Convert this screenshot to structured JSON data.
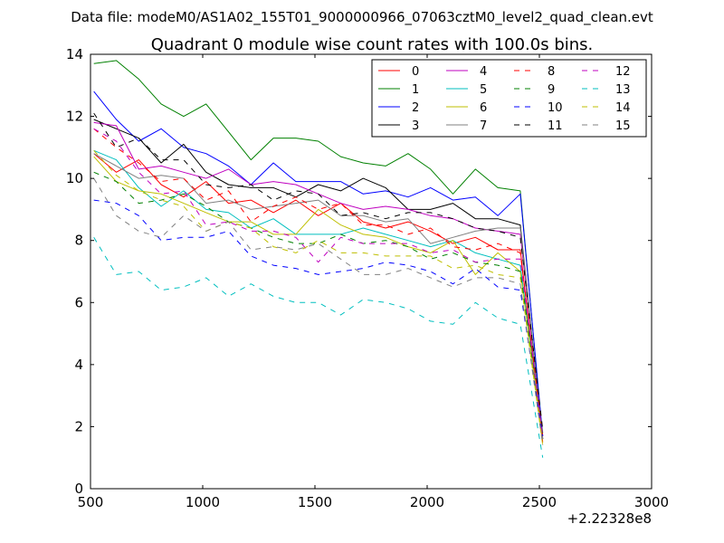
{
  "figure": {
    "suptitle": "Data file: modeM0/AS1A02_155T01_9000000966_07063cztM0_level2_quad_clean.evt",
    "offset_label": "+2.22328e8"
  },
  "chart_data": {
    "type": "line",
    "title": "Quadrant 0 module wise count rates with 100.0s bins.",
    "xlabel": "",
    "ylabel": "",
    "xlim": [
      500,
      3000
    ],
    "ylim": [
      0,
      14
    ],
    "xticks": [
      500,
      1000,
      1500,
      2000,
      2500,
      3000
    ],
    "yticks": [
      0,
      2,
      4,
      6,
      8,
      10,
      12,
      14
    ],
    "legend_position": "top-right",
    "legend_columns": 4,
    "x": [
      515,
      615,
      715,
      815,
      915,
      1015,
      1115,
      1215,
      1315,
      1415,
      1515,
      1615,
      1715,
      1815,
      1915,
      2015,
      2115,
      2215,
      2315,
      2415,
      2515
    ],
    "series": [
      {
        "name": "0",
        "color": "#ff0000",
        "dash": "solid",
        "values": [
          10.8,
          10.2,
          10.6,
          9.8,
          9.4,
          9.9,
          9.2,
          9.3,
          8.9,
          9.3,
          8.8,
          9.2,
          8.6,
          8.4,
          8.6,
          8.3,
          7.9,
          8.1,
          7.7,
          7.7,
          1.5
        ]
      },
      {
        "name": "1",
        "color": "#008000",
        "dash": "solid",
        "values": [
          13.7,
          13.8,
          13.2,
          12.4,
          12.0,
          12.4,
          11.5,
          10.6,
          11.3,
          11.3,
          11.2,
          10.7,
          10.5,
          10.4,
          10.8,
          10.3,
          9.5,
          10.3,
          9.7,
          9.6,
          1.6
        ]
      },
      {
        "name": "2",
        "color": "#0000ff",
        "dash": "solid",
        "values": [
          12.8,
          11.9,
          11.2,
          11.6,
          11.0,
          10.8,
          10.4,
          9.8,
          10.5,
          9.9,
          9.9,
          9.9,
          9.5,
          9.6,
          9.4,
          9.7,
          9.3,
          9.4,
          8.8,
          9.5,
          1.7
        ]
      },
      {
        "name": "3",
        "color": "#000000",
        "dash": "solid",
        "values": [
          11.9,
          11.6,
          11.3,
          10.5,
          11.1,
          10.2,
          9.8,
          9.7,
          9.7,
          9.4,
          9.8,
          9.6,
          10.0,
          9.7,
          9.0,
          9.0,
          9.2,
          8.7,
          8.7,
          8.5,
          1.6
        ]
      },
      {
        "name": "4",
        "color": "#bf00bf",
        "dash": "solid",
        "values": [
          11.8,
          11.7,
          10.3,
          10.4,
          10.2,
          10.0,
          10.3,
          9.8,
          9.9,
          9.8,
          9.5,
          9.2,
          9.0,
          9.1,
          9.0,
          8.8,
          8.7,
          8.4,
          8.3,
          8.2,
          1.6
        ]
      },
      {
        "name": "5",
        "color": "#00bfbf",
        "dash": "solid",
        "values": [
          10.9,
          10.6,
          9.7,
          9.1,
          9.6,
          9.0,
          8.9,
          8.4,
          8.7,
          8.2,
          8.2,
          8.2,
          8.4,
          8.2,
          8.0,
          7.8,
          8.0,
          7.6,
          7.4,
          7.2,
          1.7
        ]
      },
      {
        "name": "6",
        "color": "#bfbf00",
        "dash": "solid",
        "values": [
          10.7,
          9.9,
          9.6,
          9.5,
          9.2,
          8.9,
          8.6,
          8.6,
          8.2,
          8.2,
          9.0,
          8.5,
          8.2,
          8.1,
          7.8,
          7.6,
          8.0,
          6.9,
          7.6,
          7.0,
          1.6
        ]
      },
      {
        "name": "7",
        "color": "#808080",
        "dash": "solid",
        "values": [
          10.8,
          10.4,
          10.0,
          10.1,
          10.0,
          9.2,
          9.3,
          9.0,
          9.1,
          9.2,
          9.3,
          8.8,
          8.8,
          8.6,
          8.7,
          7.9,
          8.1,
          8.3,
          8.4,
          8.4,
          1.6
        ]
      },
      {
        "name": "8",
        "color": "#ff0000",
        "dash": "dashed",
        "values": [
          11.6,
          11.0,
          10.5,
          9.9,
          10.0,
          9.3,
          9.6,
          8.6,
          9.1,
          9.4,
          9.0,
          9.2,
          8.5,
          8.5,
          8.2,
          8.4,
          7.8,
          7.7,
          7.9,
          7.6,
          1.7
        ]
      },
      {
        "name": "9",
        "color": "#008000",
        "dash": "dashed",
        "values": [
          10.2,
          9.9,
          9.2,
          9.3,
          9.5,
          9.1,
          8.6,
          8.4,
          8.1,
          7.9,
          7.9,
          8.2,
          7.9,
          8.0,
          7.8,
          7.4,
          7.6,
          7.3,
          7.2,
          7.0,
          1.8
        ]
      },
      {
        "name": "10",
        "color": "#0000ff",
        "dash": "dashed",
        "values": [
          9.3,
          9.2,
          8.8,
          8.0,
          8.1,
          8.1,
          8.3,
          7.5,
          7.2,
          7.1,
          6.9,
          7.0,
          7.1,
          7.3,
          7.2,
          7.0,
          6.6,
          7.1,
          6.5,
          6.4,
          1.7
        ]
      },
      {
        "name": "11",
        "color": "#000000",
        "dash": "dashed",
        "values": [
          12.1,
          11.0,
          11.3,
          10.6,
          10.6,
          9.8,
          9.7,
          9.8,
          9.3,
          9.6,
          9.5,
          8.8,
          8.9,
          8.7,
          8.9,
          8.9,
          8.7,
          8.4,
          8.3,
          8.1,
          1.9
        ]
      },
      {
        "name": "12",
        "color": "#bf00bf",
        "dash": "dashed",
        "values": [
          11.6,
          11.2,
          10.2,
          9.5,
          9.6,
          8.5,
          8.6,
          8.3,
          8.3,
          8.1,
          7.3,
          8.1,
          7.9,
          7.9,
          7.9,
          7.6,
          7.7,
          7.3,
          7.4,
          7.4,
          1.7
        ]
      },
      {
        "name": "13",
        "color": "#00bfbf",
        "dash": "dashed",
        "values": [
          8.1,
          6.9,
          7.0,
          6.4,
          6.5,
          6.8,
          6.2,
          6.6,
          6.2,
          6.0,
          6.0,
          5.6,
          6.1,
          6.0,
          5.8,
          5.4,
          5.3,
          6.0,
          5.5,
          5.3,
          1.0
        ]
      },
      {
        "name": "14",
        "color": "#bfbf00",
        "dash": "dashed",
        "values": [
          10.9,
          10.1,
          9.6,
          9.3,
          9.1,
          8.3,
          8.6,
          8.4,
          7.8,
          7.6,
          8.0,
          7.6,
          7.6,
          7.5,
          7.5,
          7.5,
          7.1,
          7.2,
          6.9,
          6.8,
          1.4
        ]
      },
      {
        "name": "15",
        "color": "#808080",
        "dash": "dashed",
        "values": [
          10.0,
          8.8,
          8.3,
          8.1,
          8.8,
          8.3,
          8.6,
          7.7,
          7.8,
          7.7,
          7.9,
          7.4,
          6.9,
          6.9,
          7.1,
          6.8,
          6.5,
          6.8,
          6.8,
          6.6,
          1.4
        ]
      }
    ]
  }
}
